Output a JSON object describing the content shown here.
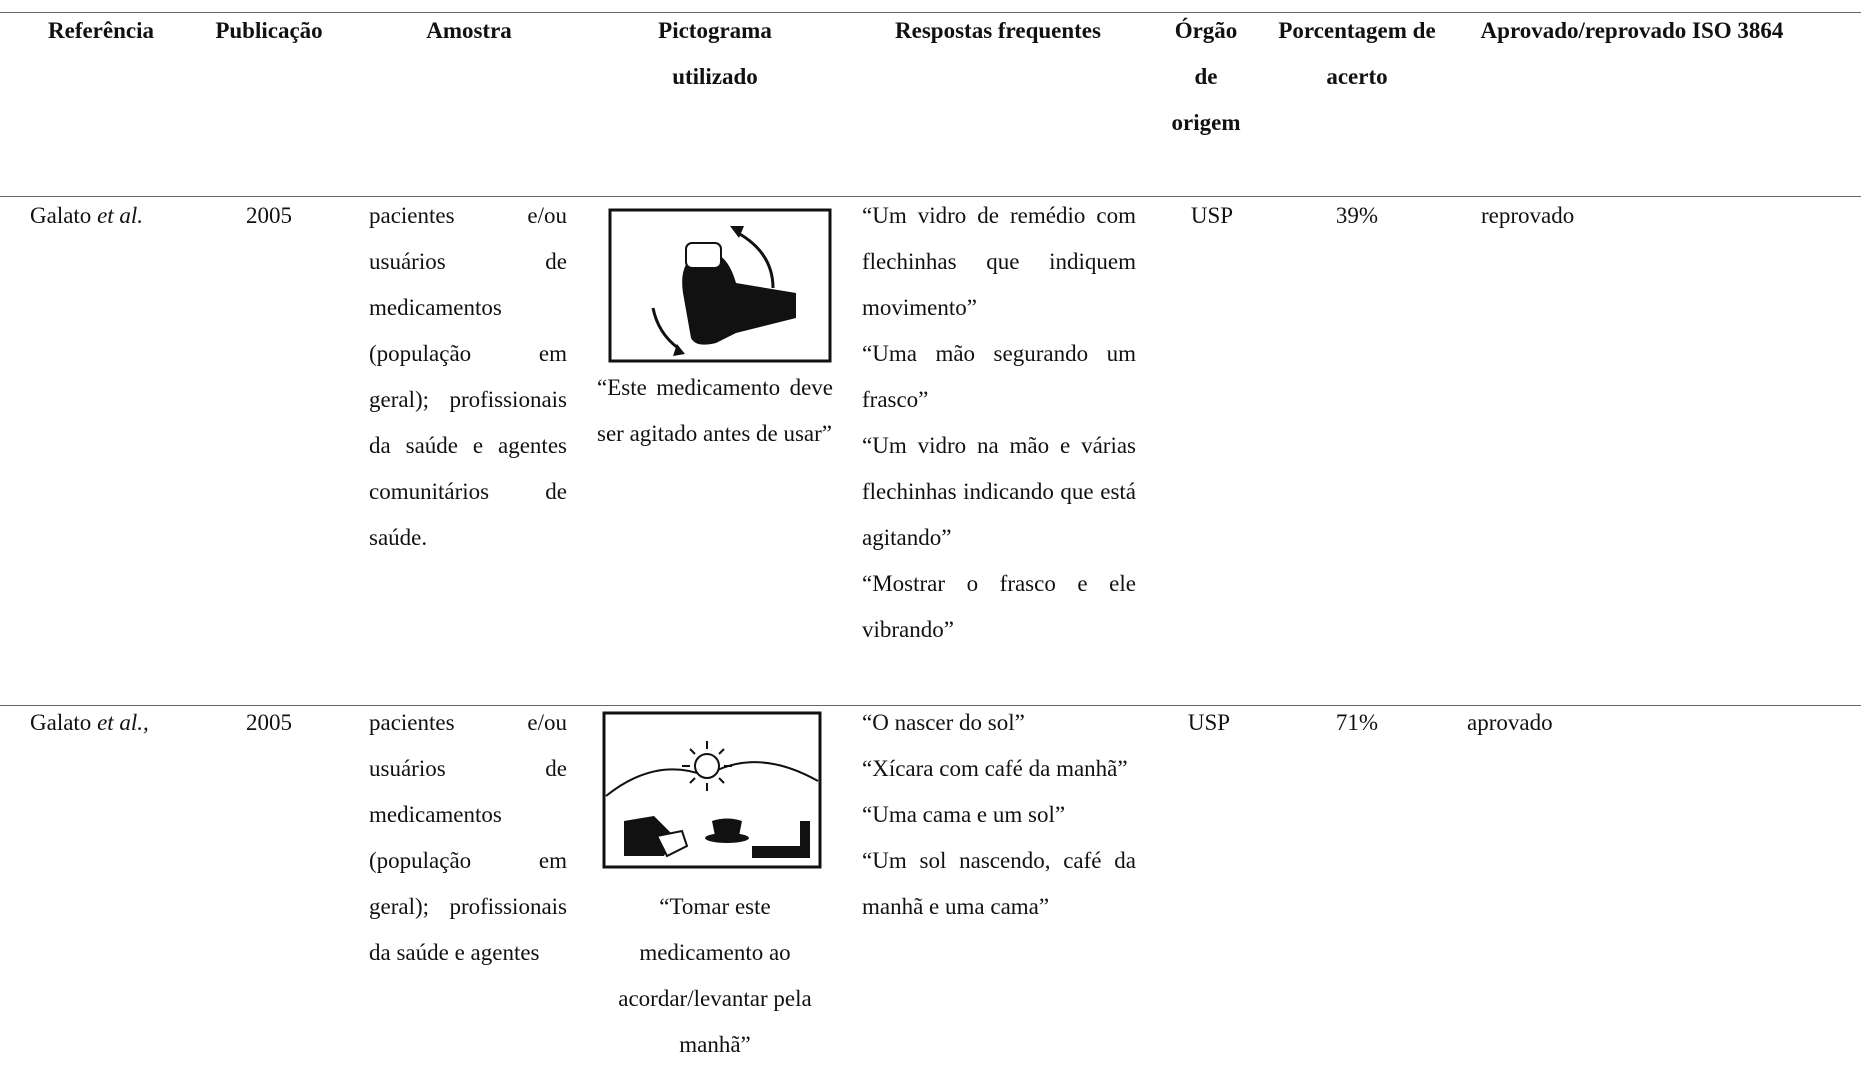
{
  "table": {
    "header": [
      "Referência",
      "Publicação",
      "Amostra",
      "Pictograma utilizado",
      "Respostas frequentes",
      "Órgão de origem",
      "Porcentagem de acerto",
      "Aprovado/reprovado ISO 3864"
    ],
    "rows": [
      {
        "reference": {
          "author": "Galato",
          "etal": "et al."
        },
        "year": "2005",
        "sample": "pacientes e/ou usuários de medicamentos (população em geral); profissionais da saúde e agentes comunitários de saúde.",
        "pictogram_caption": "“Este medicamento deve ser agitado antes de usar”",
        "responses": [
          "“Um vidro de remédio com flechinhas que indiquem movimento”",
          "“Uma mão segurando um frasco”",
          "“Um vidro na mão e várias flechinhas indicando que está agitando”",
          "“Mostrar o frasco e ele vibrando”"
        ],
        "origin": "USP",
        "accuracy": "39%",
        "result": "reprovado"
      },
      {
        "reference": {
          "author": "Galato",
          "etal": "et al.,"
        },
        "year": "2005",
        "sample": "pacientes e/ou usuários de medicamentos (população em geral); profissionais da saúde e agentes",
        "pictogram_caption": "“Tomar este medicamento ao acordar/levantar pela manhã”",
        "responses": [
          "“O nascer do sol”",
          "“Xícara com café da manhã”",
          "“Uma cama e um sol”",
          "“Um sol nascendo, café da manhã e uma cama”"
        ],
        "origin": "USP",
        "accuracy": "71%",
        "result": "aprovado"
      }
    ]
  }
}
